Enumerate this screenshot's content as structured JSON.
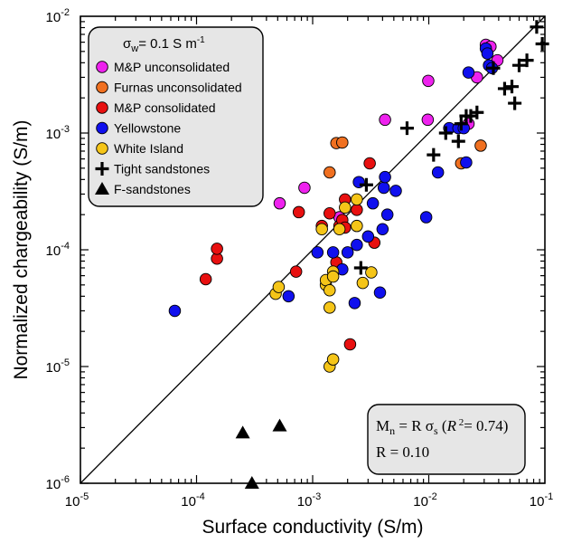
{
  "chart_data": {
    "type": "scatter",
    "xlabel": "Surface conductivity (S/m)",
    "ylabel": "Normalized chargeability (S/m)",
    "xscale": "log",
    "yscale": "log",
    "xlim": [
      1e-05,
      0.1
    ],
    "ylim": [
      1e-06,
      0.01
    ],
    "x_ticks": [
      {
        "base": "10",
        "exp": "-5"
      },
      {
        "base": "10",
        "exp": "-4"
      },
      {
        "base": "10",
        "exp": "-3"
      },
      {
        "base": "10",
        "exp": "-2"
      },
      {
        "base": "10",
        "exp": "-1"
      }
    ],
    "y_ticks": [
      {
        "base": "10",
        "exp": "-6"
      },
      {
        "base": "10",
        "exp": "-5"
      },
      {
        "base": "10",
        "exp": "-4"
      },
      {
        "base": "10",
        "exp": "-3"
      },
      {
        "base": "10",
        "exp": "-2"
      }
    ],
    "grid": false,
    "legend_position": "top-left",
    "legend_title": {
      "sigma": "σ",
      "sub": "w",
      "rest": "= 0.1 S  m",
      "sup": "-1"
    },
    "series": [
      {
        "name": "M&P unconsolidated",
        "marker": "circle",
        "color": "#ee22ee",
        "x": [
          0.00052,
          0.00085,
          0.0017,
          0.0042,
          0.0098,
          0.0099,
          0.022,
          0.026,
          0.031,
          0.034,
          0.039
        ],
        "y": [
          0.00025,
          0.00034,
          0.00019,
          0.0013,
          0.0013,
          0.0028,
          0.0012,
          0.003,
          0.0057,
          0.0055,
          0.0042
        ]
      },
      {
        "name": "Furnas unconsolidated",
        "marker": "circle",
        "color": "#f07020",
        "x": [
          0.0014,
          0.0016,
          0.0018,
          0.019,
          0.028
        ],
        "y": [
          0.00046,
          0.00082,
          0.00083,
          0.00055,
          0.00078
        ]
      },
      {
        "name": "M&P consolidated",
        "marker": "circle",
        "color": "#e81010",
        "x": [
          0.00012,
          0.00015,
          0.00015,
          0.00072,
          0.00076,
          0.0012,
          0.0014,
          0.0016,
          0.0017,
          0.0018,
          0.0019,
          0.0019,
          0.0021,
          0.0024,
          0.0031,
          0.0034
        ],
        "y": [
          5.6e-05,
          8.4e-05,
          0.000102,
          6.5e-05,
          0.00021,
          0.00016,
          0.000205,
          7.8e-05,
          0.00016,
          0.00018,
          0.00027,
          0.000155,
          1.55e-05,
          0.00022,
          0.00055,
          0.000115
        ]
      },
      {
        "name": "Yellowstone",
        "marker": "circle",
        "color": "#1010ee",
        "x": [
          6.5e-05,
          0.00062,
          0.0011,
          0.0015,
          0.0018,
          0.002,
          0.0023,
          0.0024,
          0.0025,
          0.003,
          0.0033,
          0.0038,
          0.004,
          0.0041,
          0.0042,
          0.0044,
          0.0052,
          0.0095,
          0.012,
          0.015,
          0.018,
          0.02,
          0.021,
          0.022,
          0.031,
          0.032,
          0.033,
          0.035
        ],
        "y": [
          3e-05,
          4e-05,
          9.5e-05,
          9.5e-05,
          6.8e-05,
          9.5e-05,
          3.5e-05,
          0.00011,
          0.00038,
          0.00013,
          0.00025,
          4.3e-05,
          0.00015,
          0.00034,
          0.00042,
          0.0002,
          0.00032,
          0.00019,
          0.00046,
          0.0011,
          0.0011,
          0.0011,
          0.00056,
          0.0033,
          0.0053,
          0.0048,
          0.0038,
          0.0036
        ]
      },
      {
        "name": "White Island",
        "marker": "circle",
        "color": "#f5c518",
        "x": [
          0.00048,
          0.00051,
          0.0012,
          0.0013,
          0.0013,
          0.0014,
          0.0014,
          0.0014,
          0.0015,
          0.0015,
          0.0015,
          0.0017,
          0.0019,
          0.0024,
          0.0024,
          0.0027,
          0.0032
        ],
        "y": [
          4.2e-05,
          4.8e-05,
          0.00015,
          5e-05,
          5.5e-05,
          4.5e-05,
          3.2e-05,
          1e-05,
          6.5e-05,
          5.9e-05,
          1.15e-05,
          0.00015,
          0.00023,
          0.00016,
          0.00027,
          5.2e-05,
          6.4e-05
        ]
      },
      {
        "name": "Tight sandstones",
        "marker": "plus",
        "color": "#000000",
        "x": [
          0.0026,
          0.0029,
          0.0065,
          0.011,
          0.014,
          0.018,
          0.019,
          0.021,
          0.023,
          0.026,
          0.036,
          0.045,
          0.052,
          0.055,
          0.06,
          0.07,
          0.085,
          0.095
        ],
        "y": [
          7e-05,
          0.00036,
          0.0011,
          0.00065,
          0.001,
          0.00085,
          0.0012,
          0.0014,
          0.0014,
          0.0015,
          0.0036,
          0.0024,
          0.0025,
          0.0018,
          0.0038,
          0.0042,
          0.0081,
          0.0058
        ]
      },
      {
        "name": "F-sandstones",
        "marker": "triangle",
        "color": "#000000",
        "x": [
          0.00025,
          0.0003,
          0.00052
        ],
        "y": [
          2.7e-06,
          1e-06,
          3.1e-06
        ]
      }
    ],
    "fit": {
      "eq_lhs": "M",
      "eq_lhs_sub": "n",
      "eq_mid": " = R σ",
      "eq_mid_sub": "s",
      "r2_open": " (",
      "r2_letter": "R",
      "r2_sup": " 2",
      "r2_close": "= 0.74)",
      "r_text": "R = 0.10",
      "R": 0.1
    }
  }
}
